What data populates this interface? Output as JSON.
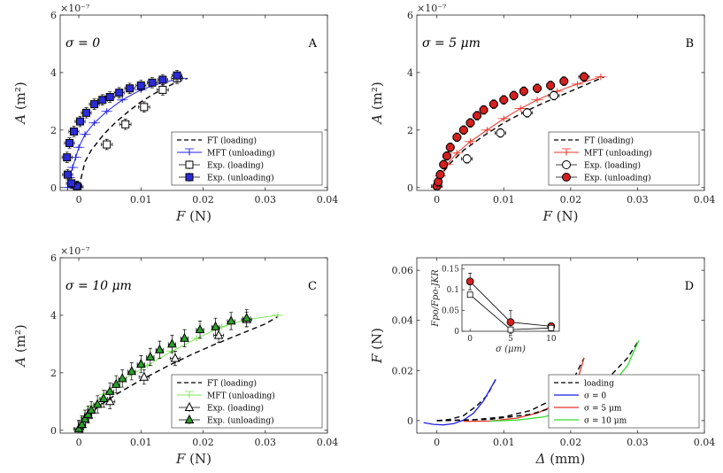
{
  "chart_data": [
    {
      "id": "A",
      "type": "scatter",
      "panel_label": "A",
      "annotation": "σ = 0",
      "xlabel": "F (N)",
      "ylabel": "A (m²)",
      "exponent_label": "×10⁻⁷",
      "xlim": [
        -0.003,
        0.04
      ],
      "ylim": [
        -0.1,
        6
      ],
      "xticks": [
        0,
        0.01,
        0.02,
        0.03,
        0.04
      ],
      "xtick_labels": [
        "0",
        "0.01",
        "0.02",
        "0.03",
        "0.04"
      ],
      "yticks": [
        0,
        2,
        4,
        6
      ],
      "ytick_labels": [
        "0",
        "2",
        "4",
        "6"
      ],
      "legend": [
        "FT (loading)",
        "MFT (unloading)",
        "Exp. (loading)",
        "Exp. (unloading)"
      ],
      "legend_position": "bottom-right",
      "series": [
        {
          "key": "ft",
          "style": "dashed-line",
          "color": "#000000",
          "x": [
            0,
            0.001,
            0.002,
            0.004,
            0.006,
            0.008,
            0.01,
            0.012,
            0.014,
            0.016,
            0.0175
          ],
          "y": [
            0,
            0.9,
            1.3,
            1.85,
            2.28,
            2.65,
            2.98,
            3.25,
            3.48,
            3.7,
            3.8
          ]
        },
        {
          "key": "mft",
          "style": "line-plus",
          "color": "#1f1fe0",
          "x": [
            -0.0018,
            -0.0015,
            -0.001,
            -0.0005,
            0,
            0.001,
            0.0025,
            0.0045,
            0.007,
            0.01,
            0.0135,
            0.0165
          ],
          "y": [
            0,
            0.35,
            0.7,
            1.05,
            1.4,
            1.85,
            2.25,
            2.65,
            3.05,
            3.4,
            3.65,
            3.8
          ]
        },
        {
          "key": "exp_load",
          "style": "open-square",
          "color": "#000000",
          "x": [
            -0.0002,
            0.0045,
            0.0075,
            0.0105,
            0.0135,
            0.0158
          ],
          "y": [
            0.02,
            1.5,
            2.2,
            2.8,
            3.4,
            3.8
          ],
          "xerr": 0.0009,
          "yerr": 0.18
        },
        {
          "key": "exp_unload",
          "style": "filled-square",
          "color": "#2b2bd9",
          "x": [
            -0.0003,
            -0.0012,
            -0.0018,
            -0.0019,
            -0.0015,
            -0.0008,
            0.0002,
            0.0012,
            0.0025,
            0.0038,
            0.005,
            0.0065,
            0.0082,
            0.01,
            0.0118,
            0.0135,
            0.0158
          ],
          "y": [
            0.05,
            0.15,
            0.45,
            1.05,
            1.55,
            1.95,
            2.3,
            2.6,
            2.9,
            3.05,
            3.15,
            3.3,
            3.45,
            3.55,
            3.65,
            3.75,
            3.9
          ],
          "xerr": 0.0008,
          "yerr": 0.18
        }
      ]
    },
    {
      "id": "B",
      "type": "scatter",
      "panel_label": "B",
      "annotation": "σ = 5 μm",
      "xlabel": "F (N)",
      "ylabel": "A (m²)",
      "exponent_label": "×10⁻⁷",
      "xlim": [
        -0.003,
        0.04
      ],
      "ylim": [
        -0.1,
        6
      ],
      "xticks": [
        0,
        0.01,
        0.02,
        0.03,
        0.04
      ],
      "xtick_labels": [
        "0",
        "0.01",
        "0.02",
        "0.03",
        "0.04"
      ],
      "yticks": [
        0,
        2,
        4,
        6
      ],
      "ytick_labels": [
        "0",
        "2",
        "4",
        "6"
      ],
      "legend": [
        "FT (loading)",
        "MFT (unloading)",
        "Exp. (loading)",
        "Exp. (unloading)"
      ],
      "legend_position": "bottom-right",
      "series": [
        {
          "key": "ft",
          "style": "dashed-line",
          "color": "#000000",
          "x": [
            0,
            0.001,
            0.002,
            0.004,
            0.007,
            0.01,
            0.013,
            0.016,
            0.019,
            0.022,
            0.025
          ],
          "y": [
            0,
            0.55,
            0.85,
            1.3,
            1.8,
            2.25,
            2.62,
            2.95,
            3.25,
            3.55,
            3.85
          ]
        },
        {
          "key": "mft",
          "style": "line-plus",
          "color": "#e8332a",
          "x": [
            0,
            0.0005,
            0.0015,
            0.003,
            0.005,
            0.0075,
            0.01,
            0.0125,
            0.015,
            0.018,
            0.021,
            0.0245
          ],
          "y": [
            0,
            0.4,
            0.8,
            1.2,
            1.6,
            2.0,
            2.4,
            2.75,
            3.05,
            3.35,
            3.6,
            3.85
          ]
        },
        {
          "key": "exp_load",
          "style": "open-circle",
          "color": "#000000",
          "x": [
            0,
            0.0045,
            0.0095,
            0.0135,
            0.0175,
            0.022
          ],
          "y": [
            0.05,
            1.0,
            1.9,
            2.6,
            3.2,
            3.85
          ],
          "xerr": 0.0008,
          "yerr": 0.15
        },
        {
          "key": "exp_unload",
          "style": "filled-circle",
          "color": "#d42020",
          "x": [
            0,
            0.0002,
            0.0005,
            0.001,
            0.0015,
            0.002,
            0.003,
            0.004,
            0.005,
            0.006,
            0.007,
            0.0085,
            0.01,
            0.0115,
            0.013,
            0.015,
            0.017,
            0.019,
            0.022
          ],
          "y": [
            0.05,
            0.2,
            0.45,
            0.8,
            1.1,
            1.4,
            1.75,
            2.0,
            2.25,
            2.5,
            2.7,
            2.9,
            3.05,
            3.2,
            3.35,
            3.45,
            3.55,
            3.7,
            3.85
          ],
          "xerr": 0.0006,
          "yerr": 0.15
        }
      ]
    },
    {
      "id": "C",
      "type": "scatter",
      "panel_label": "C",
      "annotation": "σ = 10 μm",
      "xlabel": "F (N)",
      "ylabel": "A (m²)",
      "exponent_label": "×10⁻⁷",
      "xlim": [
        -0.003,
        0.04
      ],
      "ylim": [
        -0.1,
        6
      ],
      "xticks": [
        0,
        0.01,
        0.02,
        0.03,
        0.04
      ],
      "xtick_labels": [
        "0",
        "0.01",
        "0.02",
        "0.03",
        "0.04"
      ],
      "yticks": [
        0,
        2,
        4,
        6
      ],
      "ytick_labels": [
        "0",
        "2",
        "4",
        "6"
      ],
      "legend": [
        "FT (loading)",
        "MFT (unloading)",
        "Exp. (loading)",
        "Exp. (unloading)"
      ],
      "legend_position": "bottom-right",
      "series": [
        {
          "key": "ft",
          "style": "dashed-line",
          "color": "#000000",
          "x": [
            0,
            0.001,
            0.003,
            0.006,
            0.01,
            0.014,
            0.018,
            0.022,
            0.026,
            0.03,
            0.032
          ],
          "y": [
            0,
            0.4,
            0.8,
            1.25,
            1.75,
            2.2,
            2.62,
            3.0,
            3.35,
            3.7,
            3.95
          ]
        },
        {
          "key": "mft",
          "style": "line-plus",
          "color": "#7fe65a",
          "x": [
            0,
            0.001,
            0.002,
            0.004,
            0.007,
            0.011,
            0.015,
            0.019,
            0.023,
            0.027,
            0.032
          ],
          "y": [
            0,
            0.45,
            0.8,
            1.25,
            1.75,
            2.25,
            2.75,
            3.2,
            3.6,
            3.85,
            4.0
          ]
        },
        {
          "key": "exp_load",
          "style": "open-triangle",
          "color": "#000000",
          "x": [
            0,
            0.005,
            0.0105,
            0.0155,
            0.0225,
            0.027
          ],
          "y": [
            0.05,
            1.0,
            1.85,
            2.5,
            3.3,
            3.85
          ],
          "xerr": 0.0008,
          "yerr": 0.25
        },
        {
          "key": "exp_unload",
          "style": "filled-triangle",
          "color": "#2ca02c",
          "x": [
            0,
            0.0005,
            0.001,
            0.0015,
            0.002,
            0.003,
            0.004,
            0.005,
            0.006,
            0.007,
            0.0085,
            0.01,
            0.0115,
            0.013,
            0.015,
            0.017,
            0.0195,
            0.022,
            0.0245,
            0.027
          ],
          "y": [
            0.05,
            0.2,
            0.4,
            0.55,
            0.7,
            0.9,
            1.1,
            1.35,
            1.6,
            1.8,
            2.05,
            2.3,
            2.55,
            2.8,
            3.0,
            3.2,
            3.5,
            3.6,
            3.8,
            3.9
          ],
          "xerr": 0.0006,
          "yerr": 0.3
        }
      ]
    },
    {
      "id": "D",
      "type": "line",
      "panel_label": "D",
      "xlabel": "Δ (mm)",
      "ylabel": "F (N)",
      "xlim": [
        -0.003,
        0.04
      ],
      "ylim": [
        -0.005,
        0.065
      ],
      "xticks": [
        0,
        0.01,
        0.02,
        0.03,
        0.04
      ],
      "xtick_labels": [
        "0",
        "0.01",
        "0.02",
        "0.03",
        "0.04"
      ],
      "yticks": [
        0,
        0.02,
        0.04,
        0.06
      ],
      "ytick_labels": [
        "0",
        "0.02",
        "0.04",
        "0.06"
      ],
      "legend": [
        "loading",
        "σ = 0",
        "σ = 5 μm",
        "σ = 10 μm"
      ],
      "legend_position": "bottom-right",
      "series": [
        {
          "key": "load0",
          "style": "dashed-line",
          "color": "#000000",
          "x": [
            0,
            0.002,
            0.004,
            0.006,
            0.0075,
            0.0088
          ],
          "y": [
            0,
            0.0005,
            0.002,
            0.006,
            0.01,
            0.0165
          ]
        },
        {
          "key": "s0",
          "style": "line",
          "color": "#1f1fe0",
          "x": [
            -0.002,
            -0.0005,
            0.001,
            0.0025,
            0.004,
            0.0055,
            0.007,
            0.0088
          ],
          "y": [
            -0.0008,
            -0.0015,
            -0.0017,
            -0.0012,
            0.0002,
            0.003,
            0.008,
            0.0165
          ]
        },
        {
          "key": "load5",
          "style": "dashed-line",
          "color": "#000000",
          "x": [
            0,
            0.005,
            0.01,
            0.014,
            0.017,
            0.019,
            0.0205,
            0.022
          ],
          "y": [
            0,
            0.0002,
            0.0015,
            0.004,
            0.008,
            0.012,
            0.017,
            0.025
          ]
        },
        {
          "key": "s5",
          "style": "line",
          "color": "#e8332a",
          "x": [
            0.004,
            0.008,
            0.012,
            0.015,
            0.0175,
            0.0195,
            0.021,
            0.022
          ],
          "y": [
            -0.0003,
            -0.0002,
            0.001,
            0.003,
            0.006,
            0.0105,
            0.016,
            0.025
          ]
        },
        {
          "key": "load10",
          "style": "dashed-line",
          "color": "#000000",
          "x": [
            0,
            0.008,
            0.014,
            0.019,
            0.023,
            0.026,
            0.0285,
            0.0302
          ],
          "y": [
            0,
            0.0005,
            0.0025,
            0.0065,
            0.012,
            0.018,
            0.025,
            0.032
          ]
        },
        {
          "key": "s10",
          "style": "line",
          "color": "#33dd33",
          "x": [
            0.008,
            0.012,
            0.016,
            0.0205,
            0.024,
            0.0265,
            0.0285,
            0.0302
          ],
          "y": [
            -0.0002,
            0.0002,
            0.0015,
            0.0045,
            0.0095,
            0.0155,
            0.022,
            0.032
          ]
        }
      ],
      "inset": {
        "xlabel": "σ (μm)",
        "ylabel": "Fpo/Fpo-JKR",
        "xlim": [
          -1,
          11
        ],
        "ylim": [
          0,
          0.16
        ],
        "xticks": [
          0,
          5,
          10
        ],
        "xtick_labels": [
          "0",
          "5",
          "10"
        ],
        "yticks": [
          0,
          0.05,
          0.1,
          0.15
        ],
        "ytick_labels": [
          "0",
          "0.05",
          "0.1",
          "0.15"
        ],
        "series": [
          {
            "key": "filled",
            "style": "filled-circle-line",
            "color": "#d42020",
            "x": [
              0,
              5,
              10
            ],
            "y": [
              0.12,
              0.022,
              0.012
            ],
            "yerr": [
              0.02,
              0.028,
              0.008
            ]
          },
          {
            "key": "open",
            "style": "open-square-line",
            "color": "#000000",
            "x": [
              0,
              5,
              10
            ],
            "y": [
              0.088,
              0.004,
              0.008
            ],
            "yerr": [
              0,
              0,
              0
            ]
          }
        ]
      }
    }
  ]
}
